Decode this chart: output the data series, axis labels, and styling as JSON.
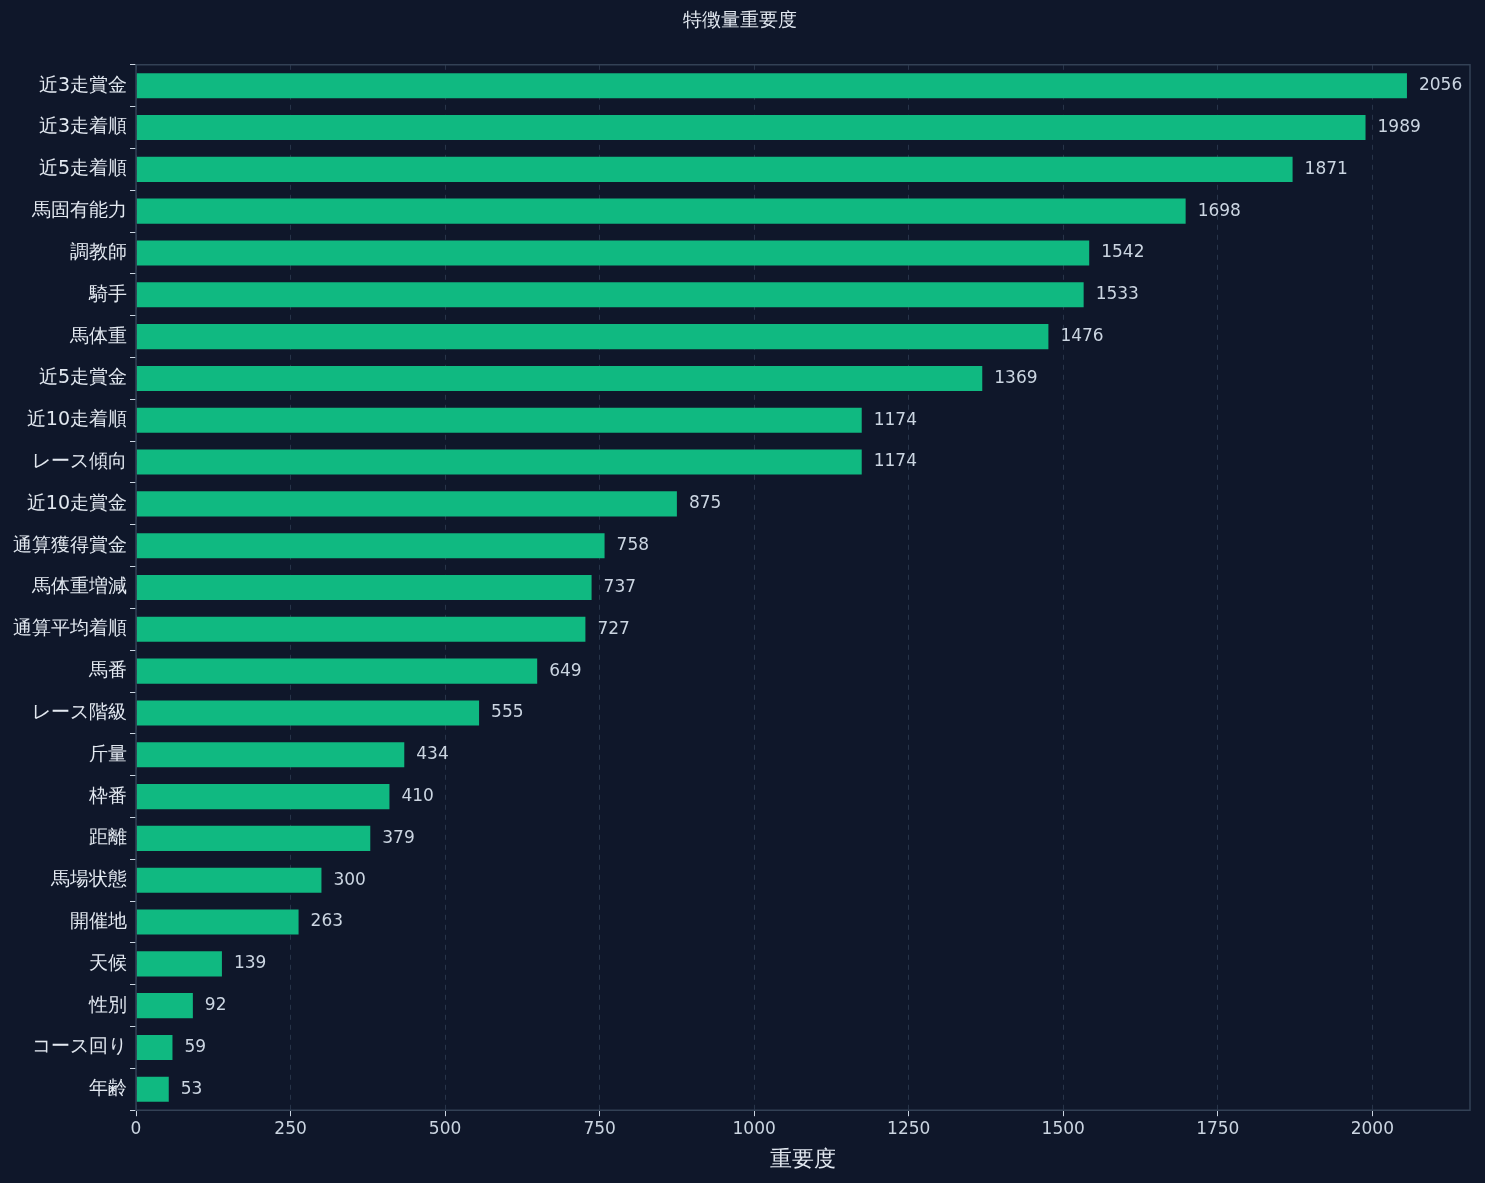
{
  "chart_data": {
    "type": "bar",
    "orientation": "horizontal",
    "title": "特徴量重要度",
    "xlabel": "重要度",
    "categories": [
      "近3走賞金",
      "近3走着順",
      "近5走着順",
      "馬固有能力",
      "調教師",
      "騎手",
      "馬体重",
      "近5走賞金",
      "近10走着順",
      "レース傾向",
      "近10走賞金",
      "通算獲得賞金",
      "馬体重増減",
      "通算平均着順",
      "馬番",
      "レース階級",
      "斤量",
      "枠番",
      "距離",
      "馬場状態",
      "開催地",
      "天候",
      "性別",
      "コース回り",
      "年齢"
    ],
    "values": [
      2056,
      1989,
      1871,
      1698,
      1542,
      1533,
      1476,
      1369,
      1174,
      1174,
      875,
      758,
      737,
      727,
      649,
      555,
      434,
      410,
      379,
      300,
      263,
      139,
      92,
      59,
      53
    ],
    "color": "#10b981",
    "xlim": [
      0,
      2158
    ],
    "xticks": [
      0,
      250,
      500,
      750,
      1000,
      1250,
      1500,
      1750,
      2000
    ],
    "grid": "x",
    "data_labels": true
  }
}
